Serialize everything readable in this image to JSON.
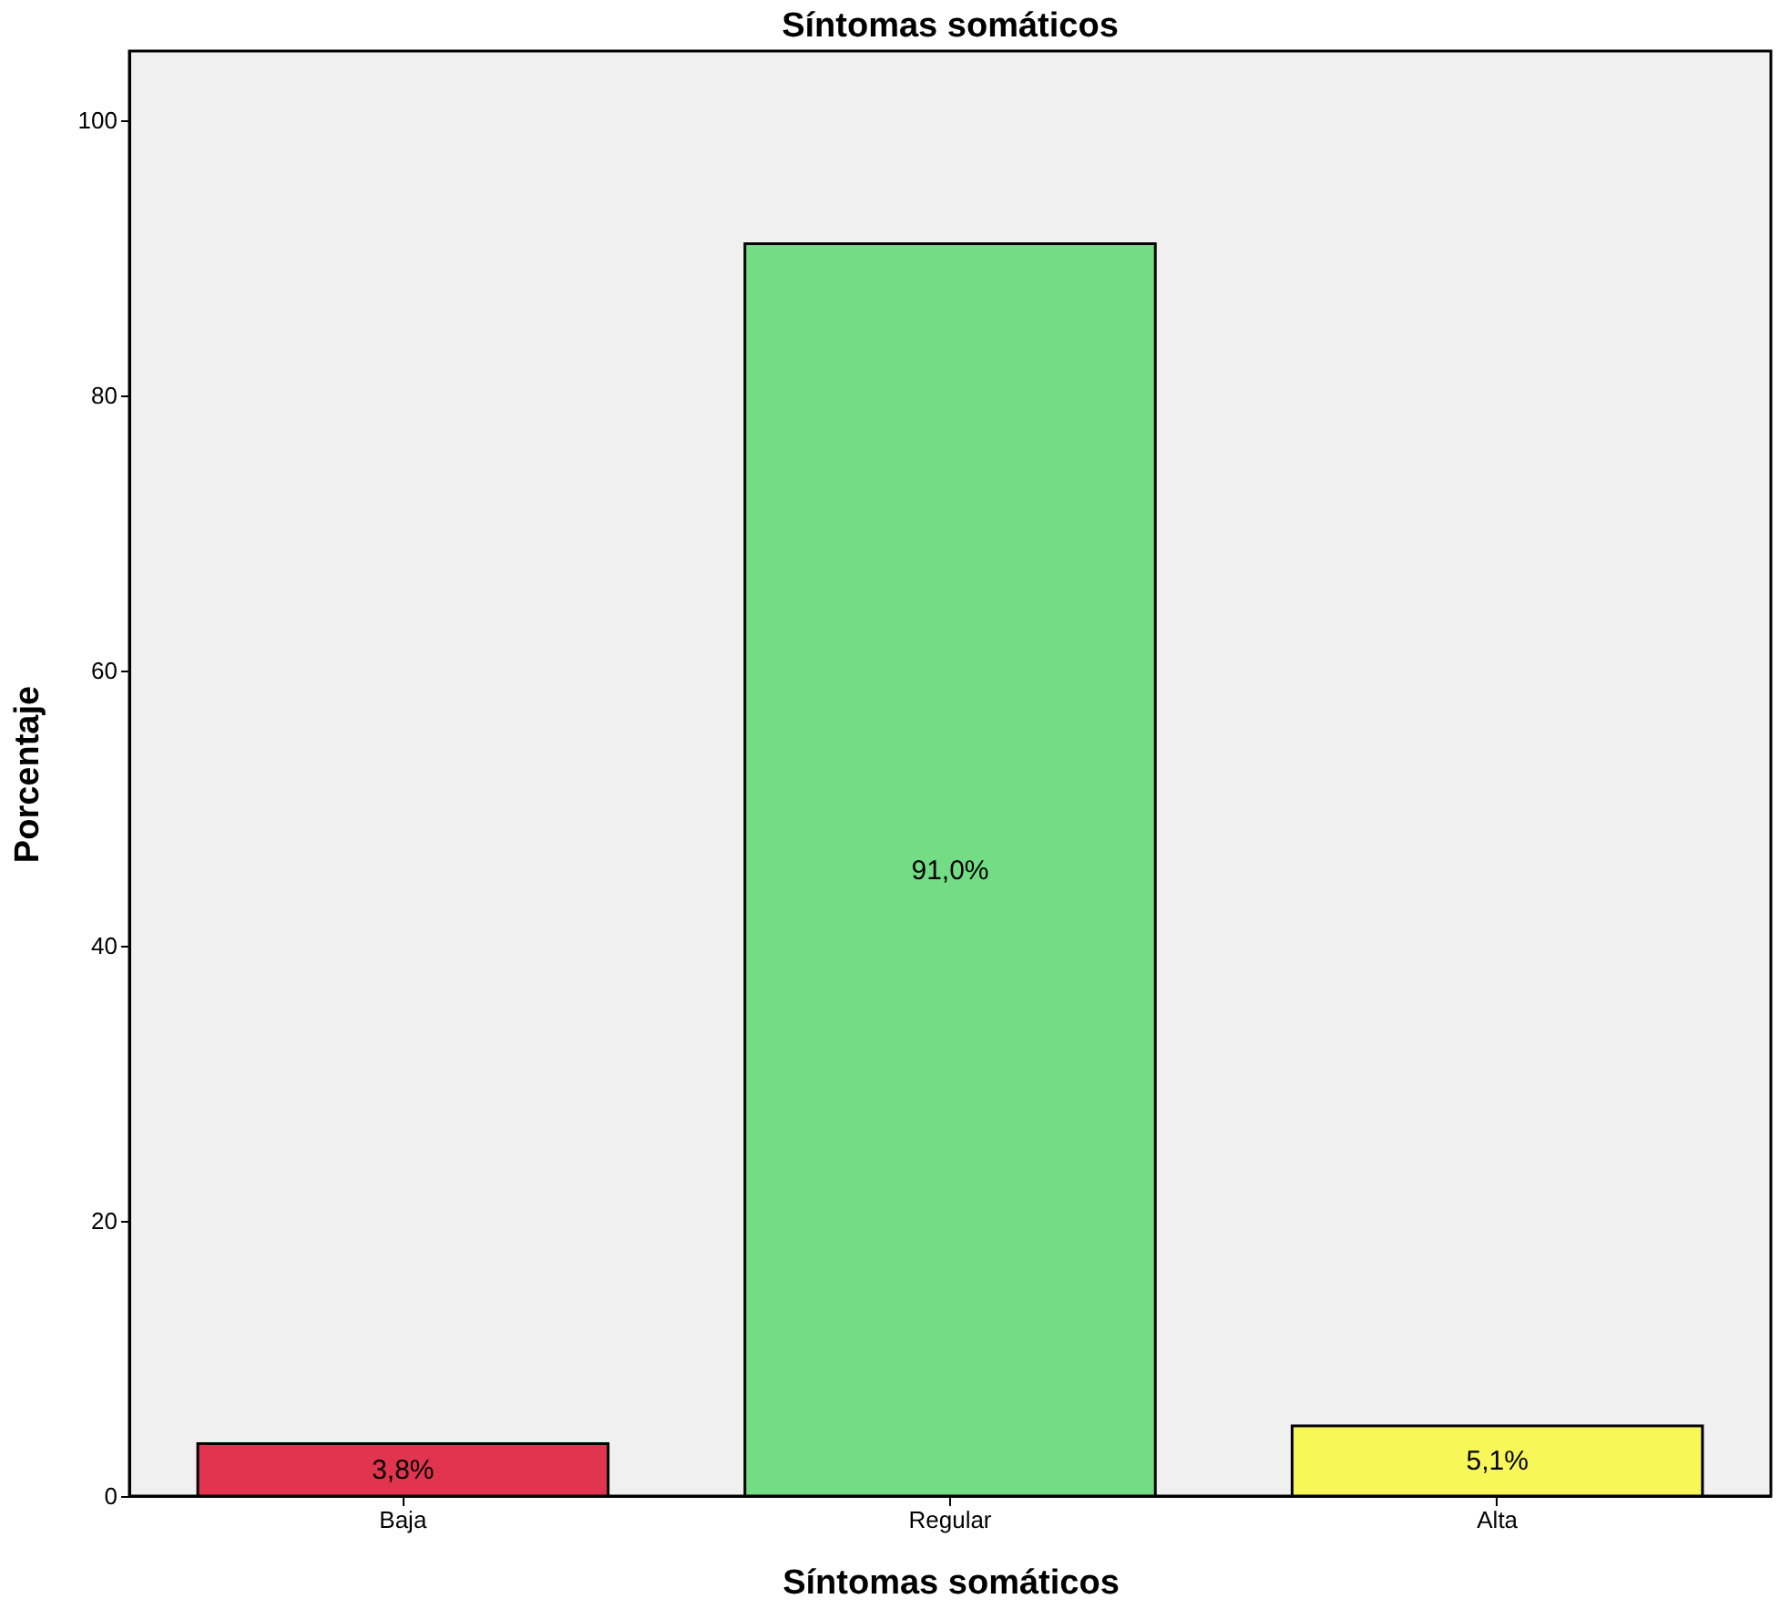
{
  "chart_data": {
    "type": "bar",
    "title": "Síntomas somáticos",
    "xlabel": "Síntomas somáticos",
    "ylabel": "Porcentaje",
    "categories": [
      "Baja",
      "Regular",
      "Alta"
    ],
    "values": [
      3.8,
      91.0,
      5.1
    ],
    "colors": [
      "#e0344f",
      "#72dd84",
      "#f8f75a"
    ],
    "value_labels": [
      "3,8%",
      "91,0%",
      "5,1%"
    ],
    "ylim": [
      0,
      105
    ],
    "yticks": [
      0,
      20,
      40,
      60,
      80,
      100
    ]
  }
}
